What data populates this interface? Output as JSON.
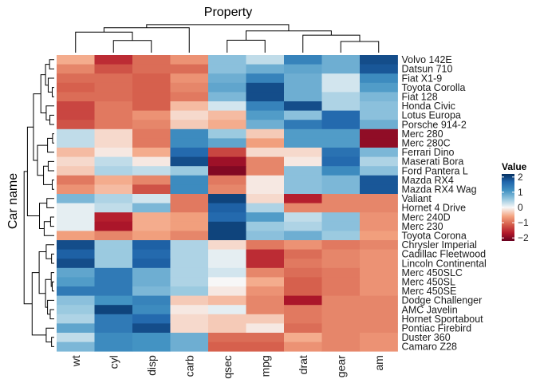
{
  "chart_data": {
    "type": "heatmap",
    "title": "Property",
    "xlabel": "Property",
    "ylabel": "Car name",
    "columns": [
      "wt",
      "cyl",
      "disp",
      "carb",
      "qsec",
      "mpg",
      "drat",
      "gear",
      "am"
    ],
    "rows": [
      {
        "name": "Volvo 142E",
        "values": [
          -0.5,
          -1.5,
          -1.0,
          -0.7,
          0.6,
          0.3,
          1.3,
          0.8,
          1.9
        ]
      },
      {
        "name": "Datsun 710",
        "values": [
          -0.8,
          -1.2,
          -1.0,
          -1.0,
          0.6,
          0.8,
          0.9,
          0.8,
          1.8
        ]
      },
      {
        "name": "Fiat X1-9",
        "values": [
          -1.0,
          -1.0,
          -1.1,
          -0.7,
          0.8,
          1.3,
          0.8,
          0.2,
          1.2
        ]
      },
      {
        "name": "Toyota Corolla",
        "values": [
          -1.1,
          -1.0,
          -1.1,
          -0.8,
          0.9,
          1.9,
          0.8,
          0.2,
          1.0
        ]
      },
      {
        "name": "Fiat 128",
        "values": [
          -1.0,
          -1.0,
          -1.1,
          -0.9,
          0.7,
          1.9,
          0.8,
          0.4,
          0.7
        ]
      },
      {
        "name": "Honda Civic",
        "values": [
          -1.3,
          -0.9,
          -1.1,
          -0.4,
          0.2,
          1.3,
          1.9,
          0.4,
          0.6
        ]
      },
      {
        "name": "Lotus Europa",
        "values": [
          -1.3,
          -0.9,
          -0.7,
          -0.2,
          -0.4,
          1.0,
          0.6,
          1.6,
          0.6
        ]
      },
      {
        "name": "Porsche 914-2",
        "values": [
          -1.2,
          -0.9,
          -0.8,
          -0.3,
          -0.5,
          0.8,
          1.4,
          1.6,
          0.8
        ]
      },
      {
        "name": "Merc 280",
        "values": [
          0.3,
          -0.2,
          -0.9,
          1.2,
          0.5,
          -0.3,
          1.0,
          1.0,
          -1.9
        ]
      },
      {
        "name": "Merc 280C",
        "values": [
          0.3,
          -0.2,
          -0.9,
          1.2,
          0.9,
          -0.6,
          1.0,
          1.0,
          -1.9
        ]
      },
      {
        "name": "Ferrari Dino",
        "values": [
          -0.4,
          -0.1,
          -0.5,
          1.6,
          -1.3,
          -0.2,
          -0.2,
          1.5,
          0.7
        ]
      },
      {
        "name": "Maserati Bora",
        "values": [
          -0.2,
          0.3,
          -0.1,
          1.9,
          -1.8,
          -0.8,
          -0.1,
          1.6,
          0.4
        ]
      },
      {
        "name": "Ford Pantera L",
        "values": [
          -0.3,
          0.4,
          0.3,
          0.5,
          -2.0,
          -0.8,
          0.6,
          1.2,
          0.6
        ]
      },
      {
        "name": "Mazda RX4",
        "values": [
          -0.9,
          -0.5,
          -0.8,
          1.2,
          -0.9,
          -0.1,
          0.6,
          0.7,
          1.8
        ]
      },
      {
        "name": "Mazda RX4 Wag",
        "values": [
          -0.7,
          -0.4,
          -1.2,
          1.2,
          -0.8,
          -0.1,
          0.6,
          0.7,
          1.8
        ]
      },
      {
        "name": "Valiant",
        "values": [
          0.7,
          0.4,
          0.2,
          -0.9,
          2.0,
          -0.2,
          -1.6,
          -0.8,
          -0.8
        ]
      },
      {
        "name": "Hornet 4 Drive",
        "values": [
          0.1,
          0.3,
          0.7,
          -0.9,
          1.7,
          0.4,
          -0.8,
          -0.8,
          -0.8
        ]
      },
      {
        "name": "Merc 240D",
        "values": [
          0.1,
          -1.6,
          -0.5,
          -0.6,
          1.6,
          1.0,
          0.3,
          0.6,
          -0.7
        ]
      },
      {
        "name": "Merc 230",
        "values": [
          0.1,
          -1.7,
          -0.5,
          -0.6,
          2.0,
          0.5,
          0.4,
          0.6,
          -0.7
        ]
      },
      {
        "name": "Toyota Corona",
        "values": [
          -0.6,
          -0.8,
          -0.6,
          -0.8,
          2.0,
          0.6,
          0.8,
          0.5,
          -0.6
        ]
      },
      {
        "name": "Chrysler Imperial",
        "values": [
          1.9,
          0.5,
          1.7,
          0.4,
          -0.2,
          -0.9,
          -0.7,
          -0.9,
          -0.8
        ]
      },
      {
        "name": "Cadillac Fleetwood",
        "values": [
          1.7,
          0.5,
          1.6,
          0.4,
          0.1,
          -1.5,
          -1.0,
          -0.8,
          -0.7
        ]
      },
      {
        "name": "Lincoln Continental",
        "values": [
          1.9,
          0.5,
          1.7,
          0.4,
          0.1,
          -1.5,
          -0.9,
          -0.8,
          -0.7
        ]
      },
      {
        "name": "Merc 450SLC",
        "values": [
          0.9,
          1.4,
          0.8,
          0.4,
          0.2,
          -0.8,
          -1.0,
          -0.9,
          -0.7
        ]
      },
      {
        "name": "Merc 450SL",
        "values": [
          1.0,
          1.4,
          0.8,
          0.4,
          0.0,
          -0.5,
          -1.1,
          -0.9,
          -0.7
        ]
      },
      {
        "name": "Merc 450SE",
        "values": [
          1.4,
          1.4,
          0.7,
          0.5,
          -0.1,
          -0.7,
          -1.1,
          -0.9,
          -0.7
        ]
      },
      {
        "name": "Dodge Challenger",
        "values": [
          0.6,
          1.1,
          1.3,
          -0.3,
          -0.4,
          -0.8,
          -1.7,
          -0.8,
          -0.8
        ]
      },
      {
        "name": "AMC Javelin",
        "values": [
          0.5,
          2.0,
          1.2,
          -0.1,
          0.1,
          -0.8,
          -0.9,
          -0.8,
          -0.8
        ]
      },
      {
        "name": "Hornet Sportabout",
        "values": [
          0.4,
          1.4,
          1.6,
          -0.2,
          -0.3,
          -0.3,
          -0.9,
          -0.8,
          -0.8
        ]
      },
      {
        "name": "Pontiac Firebird",
        "values": [
          0.9,
          1.4,
          1.9,
          -0.2,
          -0.3,
          -0.1,
          -1.0,
          -0.8,
          -0.8
        ]
      },
      {
        "name": "Duster 360",
        "values": [
          0.3,
          1.2,
          1.1,
          0.8,
          -1.0,
          -1.0,
          -0.5,
          -0.8,
          -0.7
        ]
      },
      {
        "name": "Camaro Z28",
        "values": [
          0.7,
          1.2,
          1.1,
          0.8,
          -1.1,
          -1.1,
          -0.7,
          -0.8,
          -0.7
        ]
      }
    ],
    "colorscale": {
      "low": "#67001F",
      "mid": "#F7F7F7",
      "high": "#053061",
      "limits": [
        -2.2,
        2.2
      ]
    },
    "legend": {
      "title": "Value",
      "ticks": [
        2,
        1,
        0,
        -1,
        -2
      ],
      "placement": "right"
    }
  }
}
